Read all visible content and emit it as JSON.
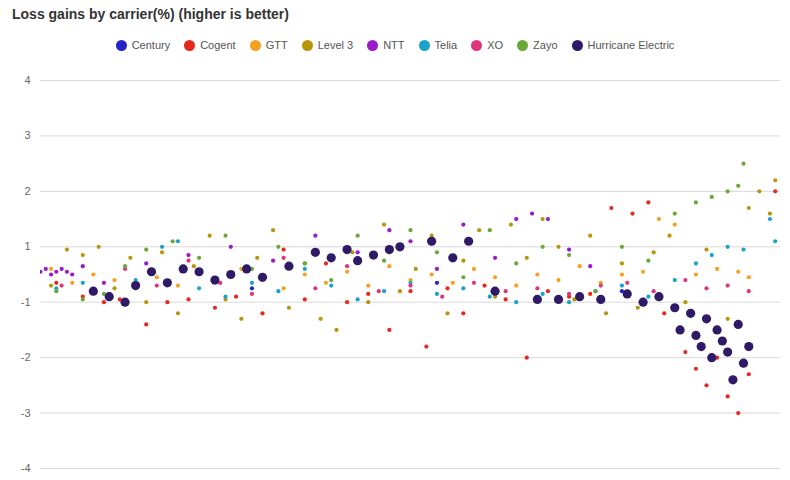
{
  "chart_data": {
    "type": "scatter",
    "title": "Loss gains by carrier(%) (higher is better)",
    "xlim": [
      0,
      140
    ],
    "ylim": [
      -4,
      4
    ],
    "yticks": [
      -4,
      -3,
      -2,
      -1,
      1,
      2,
      3,
      4
    ],
    "grid": true,
    "legend": "top",
    "tick_labels": "y",
    "series": [
      {
        "name": "Century",
        "color": "#2323c8",
        "marker": "dot",
        "x": [
          40,
          75,
          110
        ],
        "values": [
          -0.5,
          -0.3,
          -0.6
        ]
      },
      {
        "name": "Cogent",
        "color": "#e8281e",
        "marker": "dot",
        "x": [
          3,
          8,
          12,
          15,
          20,
          24,
          28,
          33,
          37,
          42,
          46,
          50,
          54,
          58,
          62,
          66,
          70,
          73,
          77,
          80,
          84,
          88,
          92,
          96,
          100,
          104,
          108,
          112,
          115,
          118,
          122,
          124,
          126,
          128,
          130,
          132,
          134,
          139
        ],
        "values": [
          -0.3,
          -0.8,
          -1.0,
          -0.9,
          -1.4,
          -1.0,
          -0.9,
          -1.1,
          -0.8,
          -1.2,
          0.9,
          -0.9,
          0.4,
          -1.0,
          -0.7,
          -1.5,
          -0.6,
          -1.8,
          -0.5,
          -1.2,
          -0.4,
          -0.9,
          -2.0,
          -0.6,
          -0.8,
          -0.7,
          1.7,
          1.6,
          1.8,
          -1.2,
          -1.9,
          -2.2,
          -2.5,
          -2.0,
          -2.7,
          -3.0,
          -2.3,
          2.0
        ]
      },
      {
        "name": "GTT",
        "color": "#f5a01e",
        "marker": "dot",
        "x": [
          2,
          6,
          10,
          14,
          18,
          22,
          26,
          30,
          34,
          38,
          42,
          46,
          50,
          54,
          58,
          62,
          66,
          70,
          74,
          78,
          82,
          86,
          90,
          94,
          98,
          102,
          106,
          110,
          114,
          117,
          120,
          124,
          128,
          132,
          134
        ],
        "values": [
          0.2,
          -0.3,
          0.0,
          -0.2,
          -0.5,
          -0.1,
          -0.4,
          0.1,
          -0.3,
          0.2,
          -0.2,
          -0.5,
          0.0,
          -0.3,
          0.1,
          -0.4,
          0.3,
          -0.2,
          0.0,
          -0.3,
          0.2,
          -0.1,
          -0.4,
          0.0,
          -0.2,
          0.3,
          -0.3,
          0.0,
          0.1,
          1.5,
          1.4,
          0.0,
          0.2,
          0.1,
          -0.1
        ]
      },
      {
        "name": "Level 3",
        "color": "#b8960c",
        "marker": "dot",
        "x": [
          2,
          5,
          8,
          11,
          14,
          17,
          20,
          23,
          26,
          29,
          32,
          35,
          38,
          41,
          44,
          47,
          50,
          53,
          56,
          59,
          62,
          65,
          68,
          71,
          74,
          77,
          80,
          83,
          86,
          89,
          92,
          95,
          98,
          101,
          104,
          107,
          110,
          113,
          116,
          119,
          122,
          126,
          130,
          134,
          136,
          138,
          139
        ],
        "values": [
          -0.4,
          0.9,
          0.7,
          1.0,
          -0.5,
          0.6,
          -1.0,
          0.8,
          -1.2,
          0.3,
          1.2,
          -0.9,
          -1.3,
          0.6,
          1.3,
          -1.1,
          0.4,
          -1.3,
          -1.5,
          0.8,
          -1.0,
          1.4,
          -0.6,
          0.2,
          1.2,
          -1.2,
          0.5,
          1.3,
          -0.8,
          1.4,
          0.6,
          1.5,
          1.0,
          -0.9,
          1.2,
          -1.2,
          0.4,
          -1.1,
          0.8,
          1.2,
          -1.0,
          0.9,
          -1.3,
          1.7,
          2.0,
          1.6,
          2.2
        ]
      },
      {
        "name": "NTT",
        "color": "#9b19c9",
        "marker": "dot",
        "x": [
          0,
          1,
          2,
          3,
          4,
          5,
          6,
          8,
          12,
          20,
          28,
          36,
          44,
          52,
          60,
          66,
          70,
          75,
          80,
          86,
          90,
          93,
          96,
          100,
          104
        ],
        "values": [
          0.1,
          0.2,
          0.0,
          0.1,
          0.2,
          0.1,
          0.0,
          0.3,
          -0.3,
          0.4,
          0.7,
          1.0,
          0.5,
          1.2,
          0.8,
          1.3,
          1.1,
          0.2,
          1.4,
          0.6,
          1.5,
          1.6,
          1.5,
          0.9,
          0.3
        ]
      },
      {
        "name": "Telia",
        "color": "#1aa3c8",
        "marker": "dot",
        "x": [
          3,
          8,
          13,
          18,
          23,
          26,
          30,
          35,
          40,
          45,
          50,
          55,
          60,
          65,
          70,
          75,
          80,
          85,
          90,
          95,
          100,
          105,
          110,
          115,
          120,
          124,
          127,
          130,
          133,
          138,
          139
        ],
        "values": [
          -0.5,
          -0.3,
          -0.7,
          -0.2,
          1.0,
          1.1,
          -0.5,
          -0.8,
          -0.3,
          -0.6,
          0.2,
          -0.4,
          -0.9,
          -0.6,
          -0.3,
          -0.7,
          -0.5,
          -0.8,
          -1.0,
          -0.7,
          -1.0,
          -0.6,
          -0.4,
          -0.8,
          -0.2,
          0.4,
          0.7,
          1.0,
          0.9,
          1.5,
          1.1
        ]
      },
      {
        "name": "XO",
        "color": "#e0357a",
        "marker": "dot",
        "x": [
          4,
          10,
          16,
          22,
          28,
          34,
          40,
          46,
          52,
          58,
          64,
          70,
          76,
          82,
          88,
          94,
          100,
          106,
          111,
          116,
          122,
          126,
          130,
          134
        ],
        "values": [
          -0.4,
          -0.6,
          0.2,
          -0.4,
          0.5,
          -0.3,
          -0.7,
          0.6,
          -0.5,
          0.3,
          -0.6,
          -0.4,
          -0.8,
          -0.3,
          -0.6,
          -0.5,
          -0.7,
          -0.4,
          -0.3,
          -0.6,
          -0.2,
          -0.5,
          -0.4,
          -0.6
        ]
      },
      {
        "name": "Zayo",
        "color": "#6aa83a",
        "marker": "dot",
        "x": [
          3,
          8,
          12,
          16,
          20,
          25,
          30,
          35,
          40,
          45,
          50,
          55,
          60,
          65,
          70,
          75,
          80,
          85,
          90,
          95,
          100,
          105,
          110,
          115,
          120,
          124,
          127,
          130,
          132,
          133
        ],
        "values": [
          -0.6,
          -0.9,
          -0.7,
          0.3,
          0.9,
          1.1,
          0.6,
          1.2,
          0.2,
          1.0,
          0.4,
          -0.2,
          1.2,
          0.5,
          1.3,
          0.8,
          -0.1,
          1.3,
          0.4,
          1.0,
          0.7,
          -0.6,
          1.0,
          0.5,
          1.6,
          1.8,
          1.9,
          2.0,
          2.1,
          2.5
        ]
      },
      {
        "name": "Hurricane Electric",
        "color": "#2e1a66",
        "marker": "circle",
        "x": [
          10,
          13,
          16,
          18,
          21,
          24,
          27,
          30,
          33,
          36,
          39,
          42,
          47,
          52,
          55,
          58,
          60,
          63,
          66,
          68,
          74,
          78,
          81,
          86,
          94,
          98,
          102,
          106,
          111,
          114,
          117,
          120,
          121,
          123,
          124,
          125,
          126,
          127,
          128,
          129,
          130,
          131,
          132,
          133,
          134
        ],
        "values": [
          -0.6,
          -0.8,
          -1.0,
          -0.4,
          0.1,
          -0.3,
          0.2,
          0.1,
          -0.2,
          0.0,
          0.2,
          -0.1,
          0.3,
          0.8,
          0.6,
          0.9,
          0.5,
          0.7,
          0.9,
          1.0,
          1.1,
          0.6,
          1.1,
          -0.6,
          -0.9,
          -0.9,
          -0.8,
          -0.9,
          -0.7,
          -1.0,
          -0.8,
          -1.1,
          -1.5,
          -1.2,
          -1.6,
          -1.8,
          -1.3,
          -2.0,
          -1.5,
          -1.7,
          -1.9,
          -2.4,
          -1.4,
          -2.1,
          -1.8
        ]
      }
    ]
  }
}
